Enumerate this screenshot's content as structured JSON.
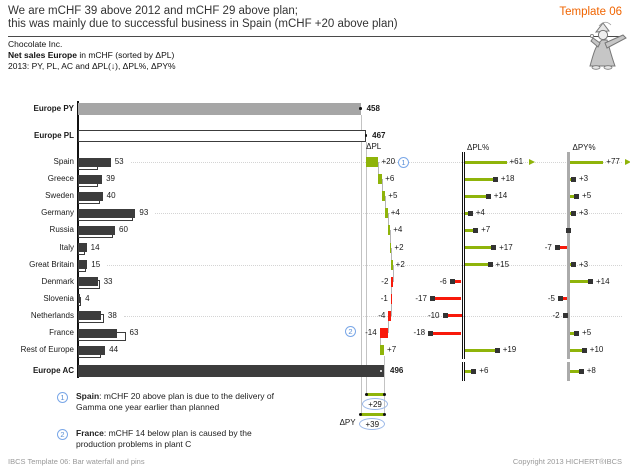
{
  "header": {
    "title_line1": "We are mCHF 39 above 2012 and mCHF 29 above plan;",
    "title_line2": "this was mainly due to successful business in Spain (mCHF +20 above plan)",
    "template_badge": "Template 06",
    "company": "Chocolate Inc.",
    "subtitle_bold": "Net sales Europe",
    "subtitle_rest": " in mCHF (sorted by ΔPL)",
    "subtitle_line3": "2013: PY, PL, AC and ΔPL(↓), ΔPL%, ΔPY%"
  },
  "chart_data": {
    "type": "bar",
    "subtype": "waterfall-and-pins",
    "title": "Net sales Europe in mCHF",
    "sorted_by": "ΔPL",
    "columns": {
      "waterfall": "ΔPL",
      "pin1": "ΔPL%",
      "pin2": "ΔPY%"
    },
    "totals": {
      "py": {
        "label": "Europe PY",
        "value": 458
      },
      "pl": {
        "label": "Europe PL",
        "value": 467
      },
      "ac": {
        "label": "Europe AC",
        "value": 496
      },
      "dpl_pct_total": 6,
      "dpy_pct_total": 8,
      "bracket_pl_delta": 29,
      "bracket_py_delta": 39,
      "bracket_py_label": "ΔPY"
    },
    "rows": [
      {
        "label": "Spain",
        "ac": 53,
        "pl": 33,
        "dpl": 20,
        "dpl_pct": 61,
        "dpl_pct_clipped": true,
        "dpy_pct": 77,
        "dpy_pct_clipped": true,
        "note": 1
      },
      {
        "label": "Greece",
        "ac": 39,
        "pl": 33,
        "dpl": 6,
        "dpl_pct": 18,
        "dpy_pct": 3
      },
      {
        "label": "Sweden",
        "ac": 40,
        "pl": 35,
        "dpl": 5,
        "dpl_pct": 14,
        "dpy_pct": 5
      },
      {
        "label": "Germany",
        "ac": 93,
        "pl": 89,
        "dpl": 4,
        "dpl_pct": 4,
        "dpy_pct": 3
      },
      {
        "label": "Russia",
        "ac": 60,
        "pl": 56,
        "dpl": 4,
        "dpl_pct": 7,
        "dpy_pct": 0
      },
      {
        "label": "Italy",
        "ac": 14,
        "pl": 12,
        "dpl": 2,
        "dpl_pct": 17,
        "dpy_pct": -7
      },
      {
        "label": "Great Britain",
        "ac": 15,
        "pl": 13,
        "dpl": 2,
        "dpl_pct": 15,
        "dpy_pct": 3
      },
      {
        "label": "Denmark",
        "ac": 33,
        "pl": 35,
        "dpl": -2,
        "dpl_pct": -6,
        "dpy_pct": 14
      },
      {
        "label": "Slovenia",
        "ac": 4,
        "pl": 5,
        "dpl": -1,
        "dpl_pct": -17,
        "dpy_pct": -5
      },
      {
        "label": "Netherlands",
        "ac": 38,
        "pl": 42,
        "dpl": -4,
        "dpl_pct": -10,
        "dpy_pct": -2
      },
      {
        "label": "France",
        "ac": 63,
        "pl": 77,
        "dpl": -14,
        "dpl_pct": -18,
        "dpy_pct": 5,
        "note": 2
      },
      {
        "label": "Rest of Europe",
        "ac": 44,
        "pl": 37,
        "dpl": 7,
        "dpl_pct": 19,
        "dpy_pct": 10
      }
    ],
    "colors": {
      "positive": "#8FB40A",
      "negative": "#F8190A",
      "ac_bar": "#3C3C3C",
      "py_bar": "#A6A6A6",
      "pin_head": "#333333",
      "note_blue": "#5B8FD4",
      "accent_orange": "#F06400"
    }
  },
  "notes": [
    {
      "num": "1",
      "bold": "Spain",
      "text": ": mCHF 20 above plan is due to the delivery of Gamma one year earlier than planned"
    },
    {
      "num": "2",
      "bold": "France",
      "text": ": mCHF 14 below plan is caused by the production problems in plant C"
    }
  ],
  "footer": {
    "left": "IBCS Template 06: Bar waterfall and pins",
    "right": "Copyright 2013 HICHERT®IBCS"
  }
}
